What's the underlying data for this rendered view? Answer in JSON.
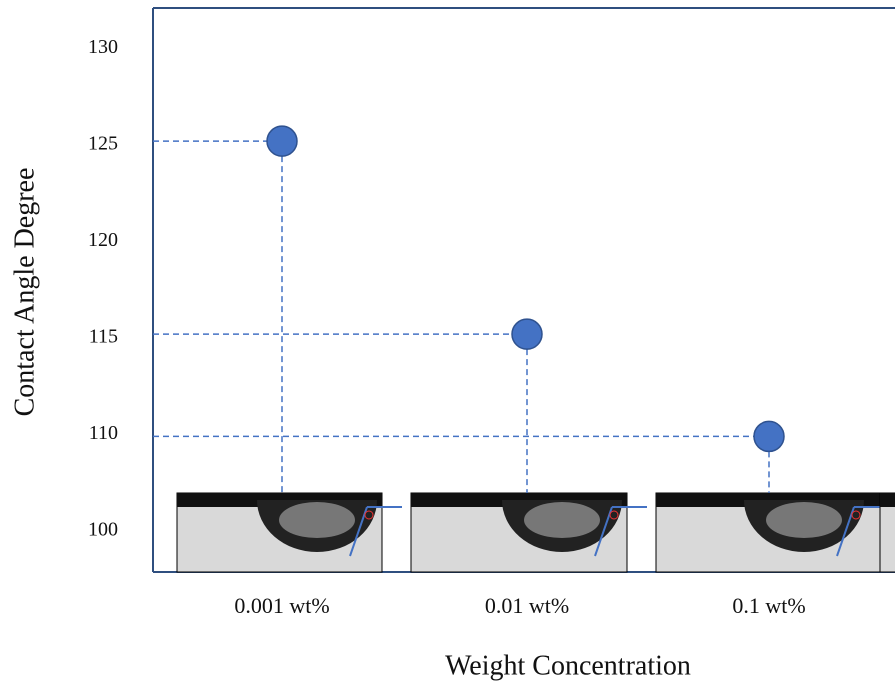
{
  "chart_data": {
    "type": "scatter",
    "x_label": "Weight Concentration",
    "y_label": "Contact Angle Degree",
    "categories": [
      "0.001 wt%",
      "0.01 wt%",
      "0.1 wt%"
    ],
    "values": [
      125.2,
      115.2,
      109.8
    ],
    "color": "#4472c4",
    "ylim": [
      96,
      132
    ],
    "yticks": [
      100,
      110,
      115,
      120,
      125,
      130
    ],
    "guide_lines": true
  }
}
